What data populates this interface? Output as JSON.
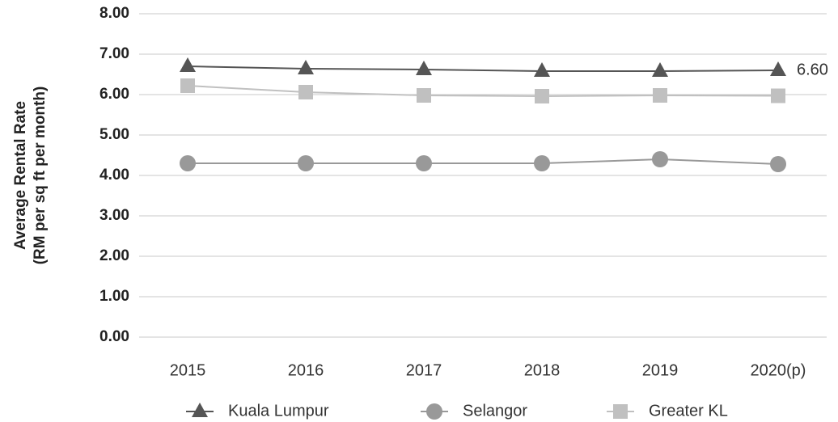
{
  "chart_data": {
    "type": "line",
    "ylabel": [
      "Average Rental Rate",
      "(RM per sq ft per month)"
    ],
    "categories": [
      "2015",
      "2016",
      "2017",
      "2018",
      "2019",
      "2020(p)"
    ],
    "series": [
      {
        "name": "Kuala Lumpur",
        "color": "#555555",
        "marker": "triangle",
        "values": [
          6.7,
          6.64,
          6.62,
          6.58,
          6.58,
          6.6
        ],
        "value_labels": [
          null,
          null,
          null,
          null,
          null,
          "6.60"
        ]
      },
      {
        "name": "Selangor",
        "color": "#999999",
        "marker": "circle",
        "values": [
          4.3,
          4.3,
          4.3,
          4.3,
          4.4,
          4.28
        ]
      },
      {
        "name": "Greater KL",
        "color": "#c0c0c0",
        "marker": "square",
        "values": [
          6.22,
          6.06,
          5.98,
          5.96,
          5.98,
          5.97
        ]
      }
    ],
    "ylim": [
      0,
      8
    ],
    "yticks": [
      {
        "value": 0,
        "label": "0.00"
      },
      {
        "value": 1,
        "label": "1.00"
      },
      {
        "value": 2,
        "label": "2.00"
      },
      {
        "value": 3,
        "label": "3.00"
      },
      {
        "value": 4,
        "label": "4.00"
      },
      {
        "value": 5,
        "label": "5.00"
      },
      {
        "value": 6,
        "label": "6.00"
      },
      {
        "value": 7,
        "label": "7.00"
      },
      {
        "value": 8,
        "label": "8.00"
      }
    ],
    "grid": true,
    "legend": "bottom"
  }
}
